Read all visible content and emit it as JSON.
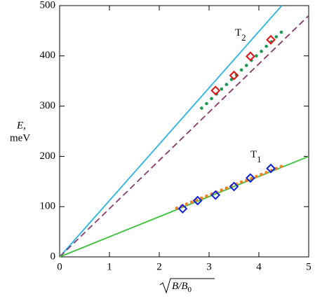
{
  "chart_data": {
    "type": "line",
    "x_label": "B/B",
    "x_label_sub": "0",
    "y_label": "E,",
    "y_unit": "meV",
    "annotations": [
      {
        "text": "T",
        "sub": "2"
      },
      {
        "text": "T",
        "sub": "1"
      }
    ],
    "xlim": [
      0,
      5
    ],
    "ylim": [
      0,
      500
    ],
    "xticks": [
      0,
      1,
      2,
      3,
      4,
      5
    ],
    "yticks": [
      0,
      100,
      200,
      300,
      400,
      500
    ],
    "series": [
      {
        "kind": "line",
        "color": "#2ab4e4",
        "x": [
          0,
          4.46
        ],
        "values": [
          0,
          500
        ]
      },
      {
        "kind": "dashed",
        "color": "#8a3a6c",
        "x": [
          0,
          5
        ],
        "values": [
          0,
          480
        ]
      },
      {
        "kind": "line",
        "color": "#3cc03c",
        "x": [
          0,
          5
        ],
        "values": [
          0,
          200
        ]
      },
      {
        "kind": "dots",
        "color": "#1a9a50",
        "x": [
          2.85,
          2.95,
          3.05,
          3.15,
          3.25,
          3.35,
          3.45,
          3.55,
          3.65,
          3.75,
          3.85,
          3.95,
          4.05,
          4.15,
          4.25,
          4.35,
          4.45
        ],
        "values": [
          296,
          305,
          315,
          324,
          334,
          343,
          353,
          362,
          372,
          381,
          391,
          400,
          409,
          419,
          428,
          438,
          447
        ]
      },
      {
        "kind": "dots",
        "color": "#f08020",
        "x": [
          2.35,
          2.45,
          2.55,
          2.65,
          2.75,
          2.85,
          2.95,
          3.05,
          3.15,
          3.25,
          3.35,
          3.45,
          3.55,
          3.65,
          3.75,
          3.85,
          3.95,
          4.05,
          4.15,
          4.25,
          4.35,
          4.45
        ],
        "values": [
          97,
          101,
          105,
          109,
          113,
          117,
          121,
          125,
          129,
          133,
          137,
          141,
          145,
          149,
          152,
          156,
          160,
          164,
          168,
          172,
          176,
          180
        ]
      },
      {
        "kind": "diamonds",
        "color": "#e01010",
        "x": [
          3.13,
          3.5,
          3.83,
          4.24
        ],
        "values": [
          331,
          361,
          399,
          432
        ]
      },
      {
        "kind": "diamonds",
        "color": "#1020e0",
        "x": [
          2.47,
          2.77,
          3.13,
          3.5,
          3.83,
          4.24
        ],
        "values": [
          96,
          112,
          123,
          140,
          157,
          176
        ]
      }
    ]
  }
}
